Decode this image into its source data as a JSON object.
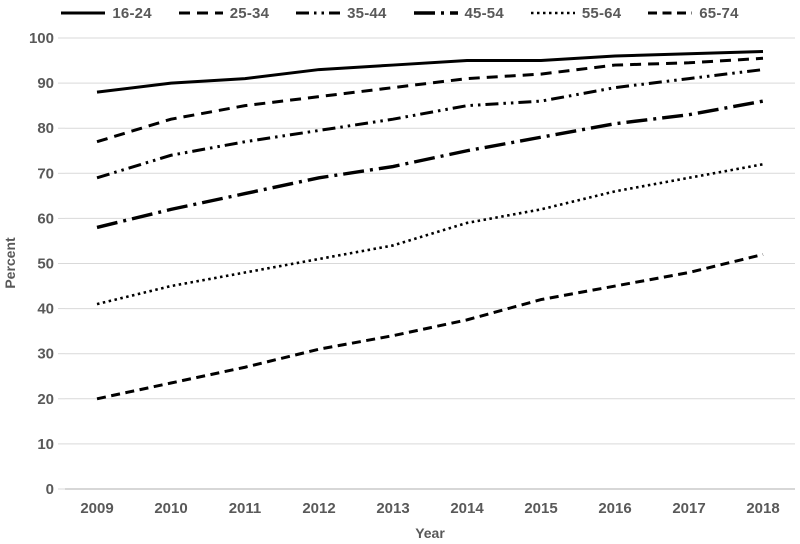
{
  "chart_data": {
    "type": "line",
    "title": "",
    "xlabel": "Year",
    "ylabel": "Percent",
    "x": [
      2009,
      2010,
      2011,
      2012,
      2013,
      2014,
      2015,
      2016,
      2017,
      2018
    ],
    "ylim": [
      0,
      100
    ],
    "ytick_step": 10,
    "y_ticks": [
      "0",
      "10",
      "20",
      "30",
      "40",
      "50",
      "60",
      "70",
      "80",
      "90",
      "100"
    ],
    "x_ticks": [
      "2009",
      "2010",
      "2011",
      "2012",
      "2013",
      "2014",
      "2015",
      "2016",
      "2017",
      "2018"
    ],
    "grid": true,
    "legend_position": "top",
    "series": [
      {
        "name": "16-24",
        "style": "solid",
        "values": [
          88,
          90,
          91,
          93,
          94,
          95,
          95,
          96,
          96.5,
          97
        ]
      },
      {
        "name": "25-34",
        "style": "dash",
        "values": [
          77,
          82,
          85,
          87,
          89,
          91,
          92,
          94,
          94.5,
          95.5
        ]
      },
      {
        "name": "35-44",
        "style": "dash-dot-dot",
        "values": [
          69,
          74,
          77,
          79.5,
          82,
          85,
          86,
          89,
          91,
          93
        ]
      },
      {
        "name": "45-54",
        "style": "long-dash-dot",
        "values": [
          58,
          62,
          65.5,
          69,
          71.5,
          75,
          78,
          81,
          83,
          86
        ]
      },
      {
        "name": "55-64",
        "style": "dot",
        "values": [
          41,
          45,
          48,
          51,
          54,
          59,
          62,
          66,
          69,
          72
        ]
      },
      {
        "name": "65-74",
        "style": "medium-dash",
        "values": [
          20,
          23.5,
          27,
          31,
          34,
          37.5,
          42,
          45,
          48,
          52
        ]
      }
    ]
  },
  "colors": {
    "line": "#000000",
    "grid": "#d9d9d9",
    "axis": "#bfbfbf",
    "text": "#595959",
    "background": "#ffffff"
  }
}
